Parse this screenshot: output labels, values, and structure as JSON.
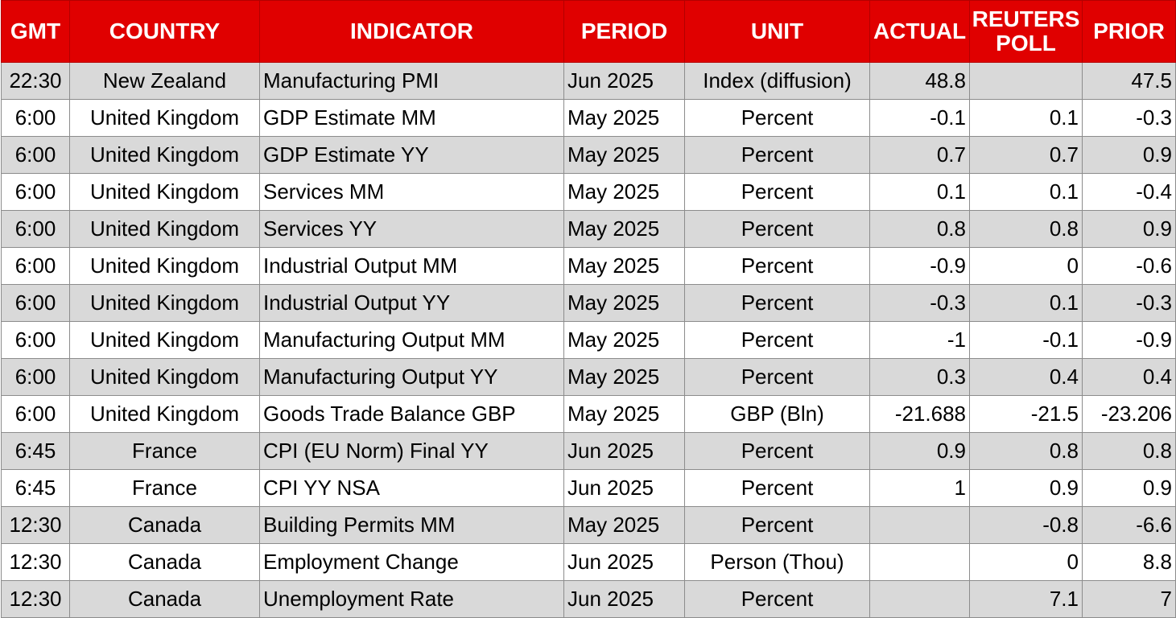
{
  "header": {
    "gmt": "GMT",
    "country": "COUNTRY",
    "indicator": "INDICATOR",
    "period": "PERIOD",
    "unit": "UNIT",
    "actual": "ACTUAL",
    "poll_line1": "REUTERS",
    "poll_line2": "POLL",
    "prior": "PRIOR"
  },
  "rows": [
    {
      "gmt": "22:30",
      "country": "New Zealand",
      "indicator": "Manufacturing PMI",
      "period": "Jun 2025",
      "unit": "Index (diffusion)",
      "actual": "48.8",
      "poll": "",
      "prior": "47.5"
    },
    {
      "gmt": "6:00",
      "country": "United Kingdom",
      "indicator": "GDP Estimate MM",
      "period": "May 2025",
      "unit": "Percent",
      "actual": "-0.1",
      "poll": "0.1",
      "prior": "-0.3"
    },
    {
      "gmt": "6:00",
      "country": "United Kingdom",
      "indicator": "GDP Estimate YY",
      "period": "May 2025",
      "unit": "Percent",
      "actual": "0.7",
      "poll": "0.7",
      "prior": "0.9"
    },
    {
      "gmt": "6:00",
      "country": "United Kingdom",
      "indicator": "Services MM",
      "period": "May 2025",
      "unit": "Percent",
      "actual": "0.1",
      "poll": "0.1",
      "prior": "-0.4"
    },
    {
      "gmt": "6:00",
      "country": "United Kingdom",
      "indicator": "Services YY",
      "period": "May 2025",
      "unit": "Percent",
      "actual": "0.8",
      "poll": "0.8",
      "prior": "0.9"
    },
    {
      "gmt": "6:00",
      "country": "United Kingdom",
      "indicator": "Industrial Output MM",
      "period": "May 2025",
      "unit": "Percent",
      "actual": "-0.9",
      "poll": "0",
      "prior": "-0.6"
    },
    {
      "gmt": "6:00",
      "country": "United Kingdom",
      "indicator": "Industrial Output YY",
      "period": "May 2025",
      "unit": "Percent",
      "actual": "-0.3",
      "poll": "0.1",
      "prior": "-0.3"
    },
    {
      "gmt": "6:00",
      "country": "United Kingdom",
      "indicator": "Manufacturing Output MM",
      "period": "May 2025",
      "unit": "Percent",
      "actual": "-1",
      "poll": "-0.1",
      "prior": "-0.9"
    },
    {
      "gmt": "6:00",
      "country": "United Kingdom",
      "indicator": "Manufacturing Output YY",
      "period": "May 2025",
      "unit": "Percent",
      "actual": "0.3",
      "poll": "0.4",
      "prior": "0.4"
    },
    {
      "gmt": "6:00",
      "country": "United Kingdom",
      "indicator": "Goods Trade Balance GBP",
      "period": "May 2025",
      "unit": "GBP (Bln)",
      "actual": "-21.688",
      "poll": "-21.5",
      "prior": "-23.206"
    },
    {
      "gmt": "6:45",
      "country": "France",
      "indicator": "CPI (EU Norm) Final YY",
      "period": "Jun 2025",
      "unit": "Percent",
      "actual": "0.9",
      "poll": "0.8",
      "prior": "0.8"
    },
    {
      "gmt": "6:45",
      "country": "France",
      "indicator": "CPI YY NSA",
      "period": "Jun 2025",
      "unit": "Percent",
      "actual": "1",
      "poll": "0.9",
      "prior": "0.9"
    },
    {
      "gmt": "12:30",
      "country": "Canada",
      "indicator": "Building Permits MM",
      "period": "May 2025",
      "unit": "Percent",
      "actual": "",
      "poll": "-0.8",
      "prior": "-6.6"
    },
    {
      "gmt": "12:30",
      "country": "Canada",
      "indicator": "Employment Change",
      "period": "Jun 2025",
      "unit": "Person (Thou)",
      "actual": "",
      "poll": "0",
      "prior": "8.8"
    },
    {
      "gmt": "12:30",
      "country": "Canada",
      "indicator": "Unemployment Rate",
      "period": "Jun 2025",
      "unit": "Percent",
      "actual": "",
      "poll": "7.1",
      "prior": "7"
    }
  ]
}
